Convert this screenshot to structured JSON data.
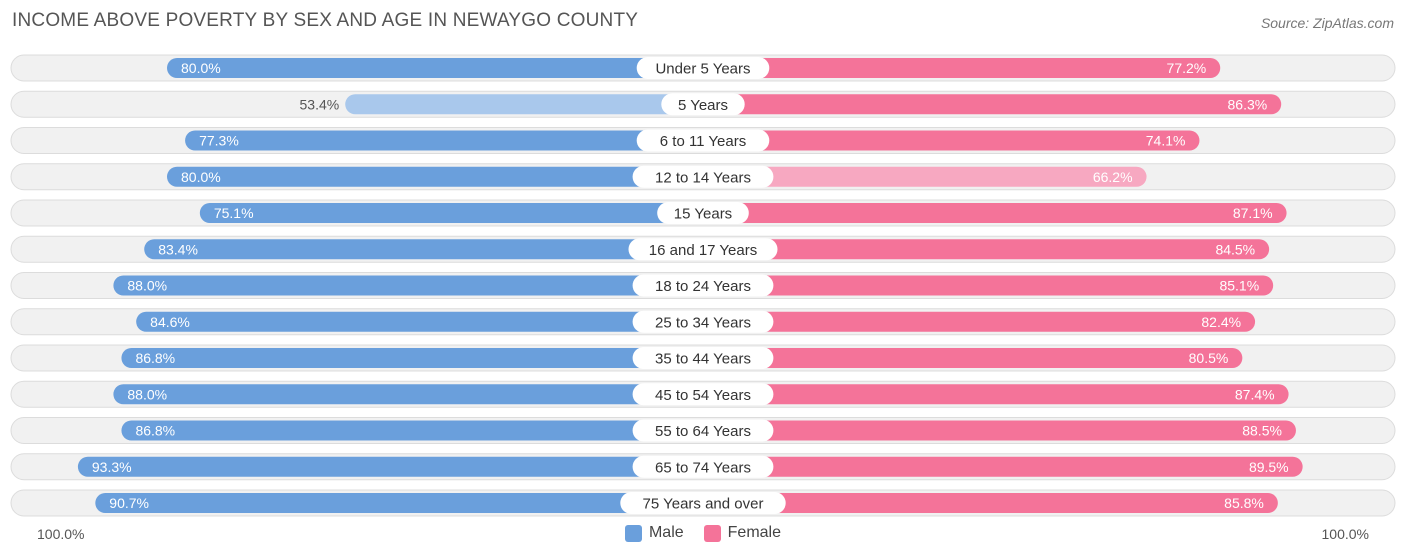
{
  "header": {
    "title": "INCOME ABOVE POVERTY BY SEX AND AGE IN NEWAYGO COUNTY",
    "source": "Source: ZipAtlas.com"
  },
  "colors": {
    "male": "#6a9fdc",
    "male_light": "#a9c8ec",
    "female": "#f47399",
    "female_light": "#f7a8c1",
    "track": "#f1f1f1",
    "track_border": "#dcdcdc"
  },
  "chart_data": {
    "type": "bar",
    "orientation": "horizontal-diverging",
    "title": "INCOME ABOVE POVERTY BY SEX AND AGE IN NEWAYGO COUNTY",
    "categories": [
      "Under 5 Years",
      "5 Years",
      "6 to 11 Years",
      "12 to 14 Years",
      "15 Years",
      "16 and 17 Years",
      "18 to 24 Years",
      "25 to 34 Years",
      "35 to 44 Years",
      "45 to 54 Years",
      "55 to 64 Years",
      "65 to 74 Years",
      "75 Years and over"
    ],
    "series": [
      {
        "name": "Male",
        "values": [
          80.0,
          53.4,
          77.3,
          80.0,
          75.1,
          83.4,
          88.0,
          84.6,
          86.8,
          88.0,
          86.8,
          93.3,
          90.7
        ],
        "labels": [
          "80.0%",
          "53.4%",
          "77.3%",
          "80.0%",
          "75.1%",
          "83.4%",
          "88.0%",
          "84.6%",
          "86.8%",
          "88.0%",
          "86.8%",
          "93.3%",
          "90.7%"
        ]
      },
      {
        "name": "Female",
        "values": [
          77.2,
          86.3,
          74.1,
          66.2,
          87.1,
          84.5,
          85.1,
          82.4,
          80.5,
          87.4,
          88.5,
          89.5,
          85.8
        ],
        "labels": [
          "77.2%",
          "86.3%",
          "74.1%",
          "66.2%",
          "87.1%",
          "84.5%",
          "85.1%",
          "82.4%",
          "80.5%",
          "87.4%",
          "88.5%",
          "89.5%",
          "85.8%"
        ]
      }
    ],
    "xlim": [
      0,
      100
    ],
    "axis_left_label": "100.0%",
    "axis_right_label": "100.0%",
    "legend": [
      "Male",
      "Female"
    ],
    "legend_position": "bottom-center"
  }
}
